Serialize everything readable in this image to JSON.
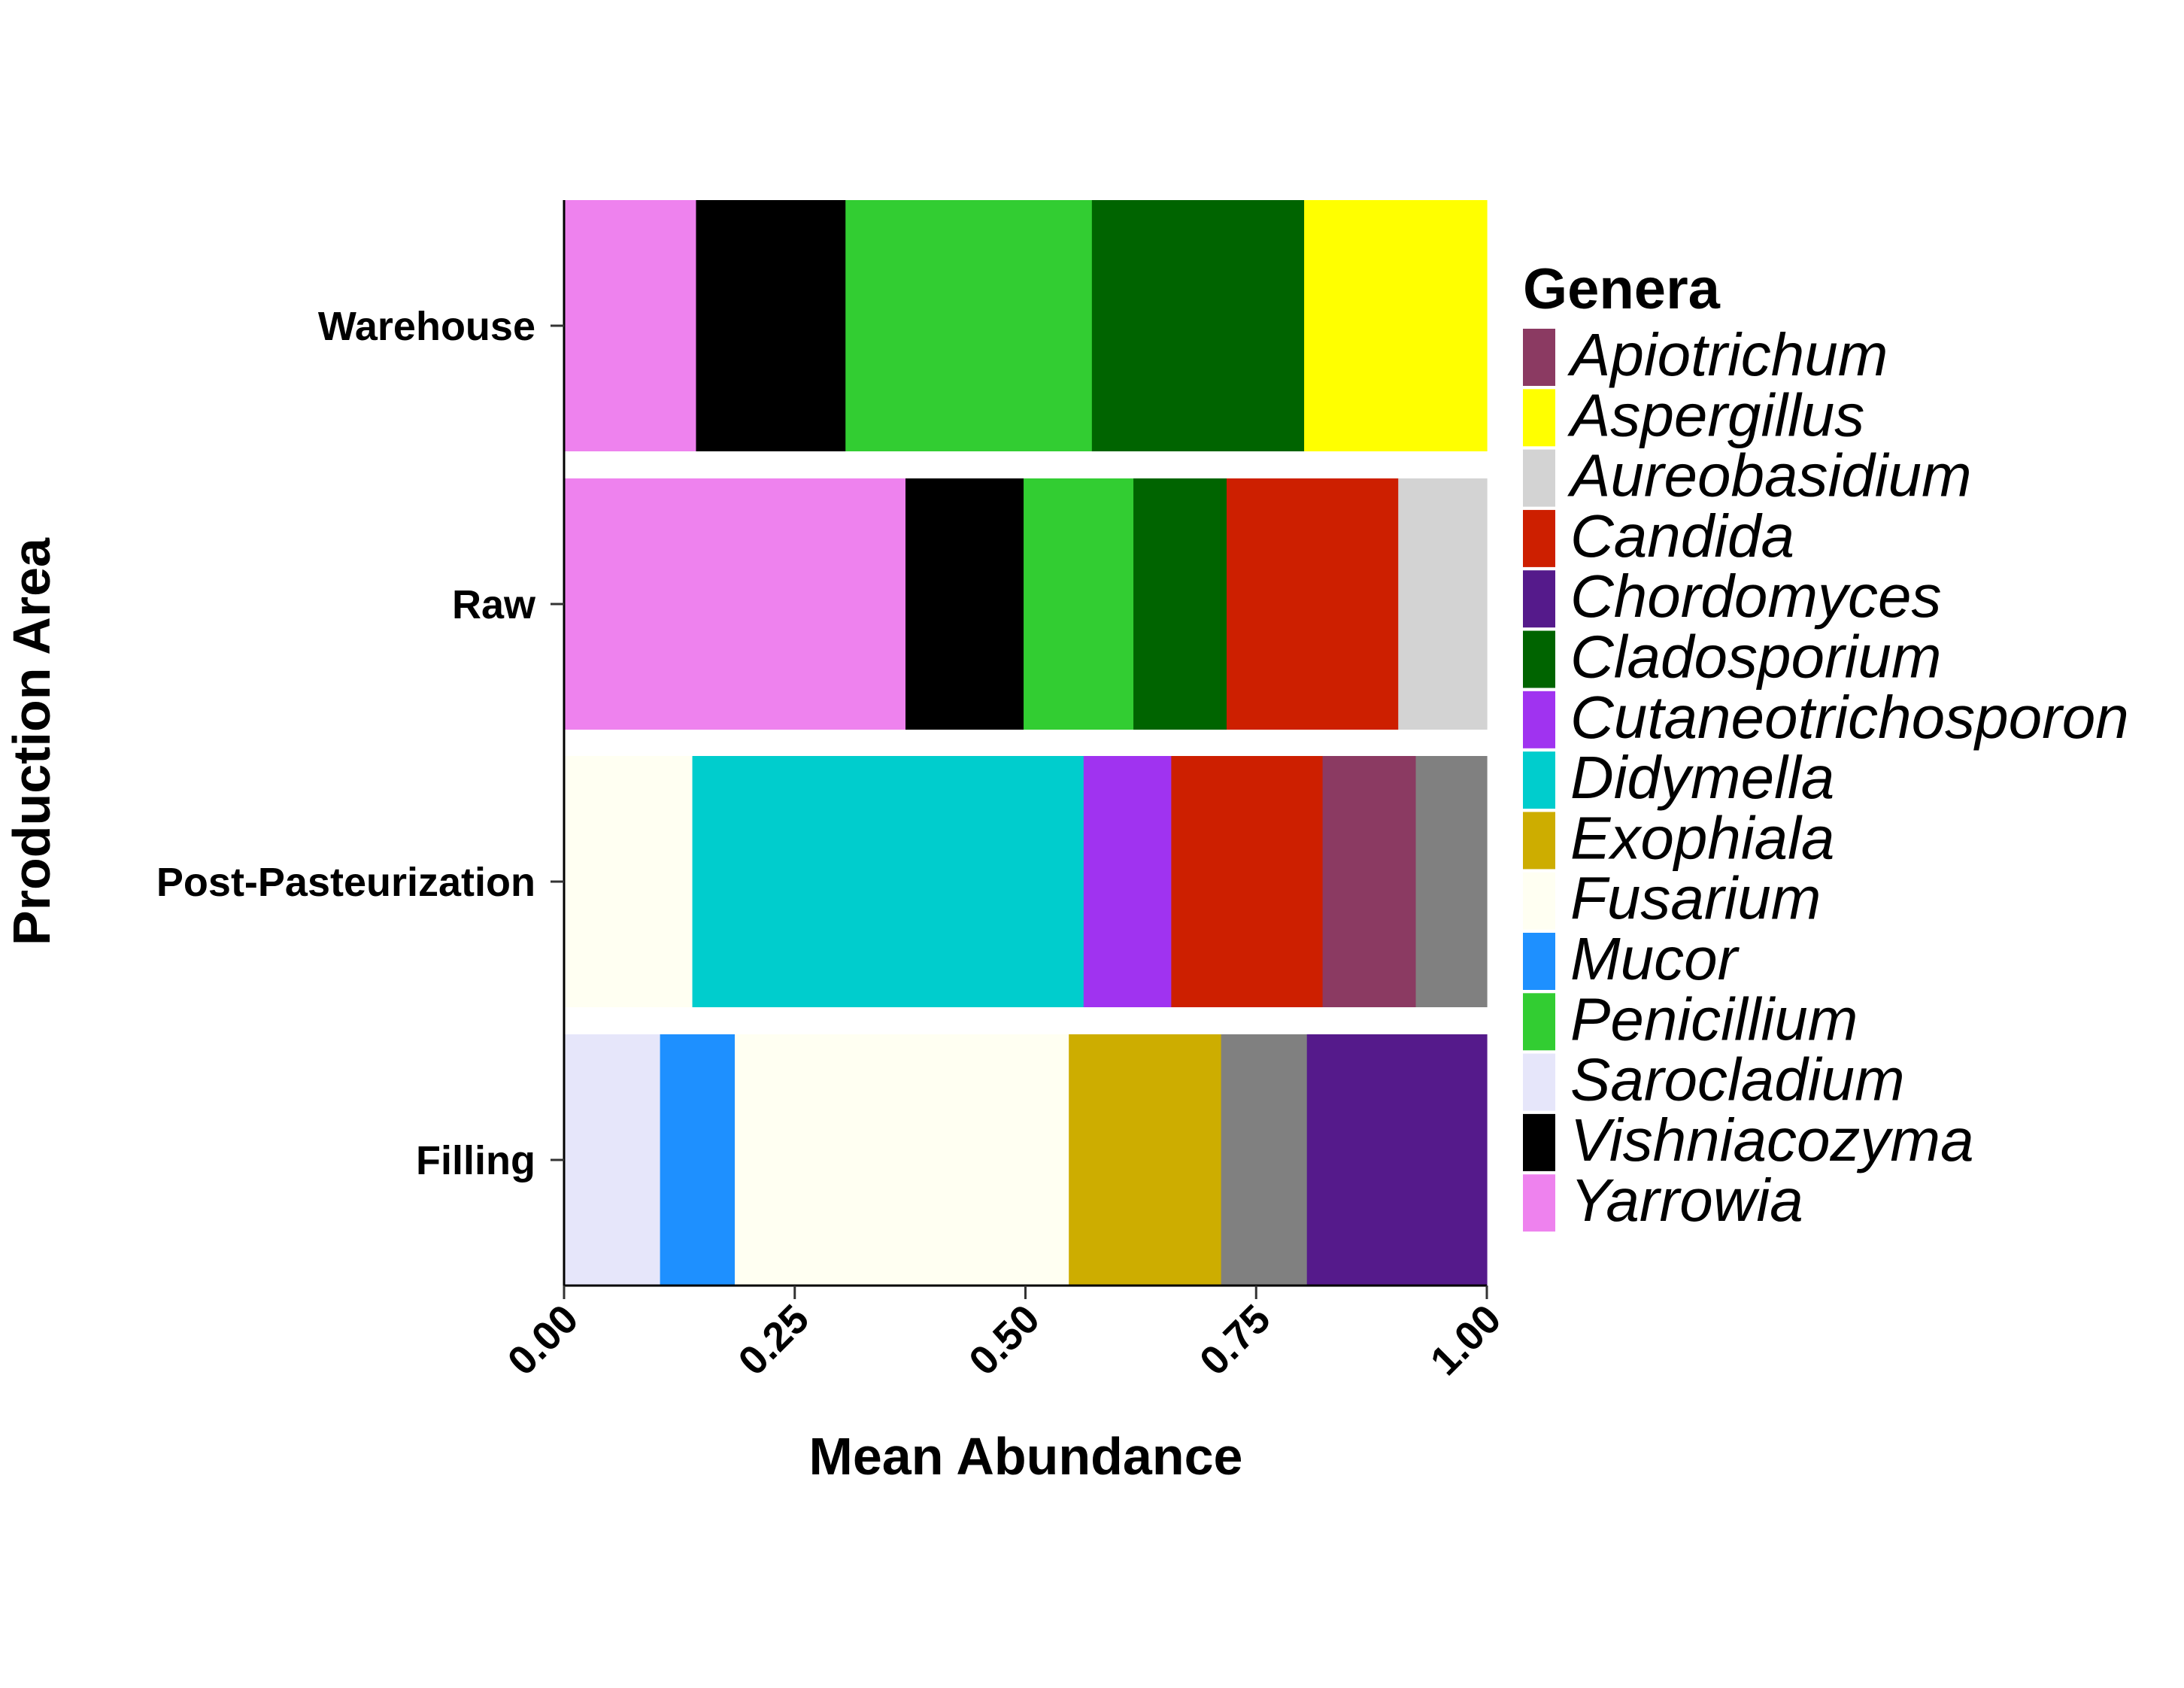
{
  "chart_data": {
    "type": "bar",
    "orientation": "horizontal",
    "stacked": true,
    "xlabel": "Mean Abundance",
    "ylabel": "Production Area",
    "xlim": [
      0,
      1
    ],
    "x_ticks": [
      "0.00",
      "0.25",
      "0.50",
      "0.75",
      "1.00"
    ],
    "categories": [
      "Warehouse",
      "Raw",
      "Post-Pasteurization",
      "Filling"
    ],
    "legend": {
      "title": "Genera",
      "placement": "right",
      "entries": [
        {
          "name": "Apiotrichum",
          "color": "#8B3A62"
        },
        {
          "name": "Aspergillus",
          "color": "#FFFF00"
        },
        {
          "name": "Aureobasidium",
          "color": "#D3D3D3"
        },
        {
          "name": "Candida",
          "color": "#CD1F00"
        },
        {
          "name": "Chordomyces",
          "color": "#551A8B"
        },
        {
          "name": "Cladosporium",
          "color": "#006400"
        },
        {
          "name": "Cutaneotrichosporon",
          "color": "#A033F0"
        },
        {
          "name": "Didymella",
          "color": "#00CDCD"
        },
        {
          "name": "Exophiala",
          "color": "#CDAD00"
        },
        {
          "name": "Fusarium",
          "color": "#FFFFF2"
        },
        {
          "name": "Mucor",
          "color": "#1E90FF"
        },
        {
          "name": "Penicillium",
          "color": "#32CD32"
        },
        {
          "name": "Sarocladium",
          "color": "#E6E6FA"
        },
        {
          "name": "Vishniacozyma",
          "color": "#000000"
        },
        {
          "name": "Yarrowia",
          "color": "#EE82EE"
        }
      ]
    },
    "other_color": "#808080",
    "bars": [
      {
        "category": "Warehouse",
        "segments": [
          {
            "genus": "Yarrowia",
            "value": 0.143
          },
          {
            "genus": "Vishniacozyma",
            "value": 0.162
          },
          {
            "genus": "Penicillium",
            "value": 0.267
          },
          {
            "genus": "Cladosporium",
            "value": 0.23
          },
          {
            "genus": "Aspergillus",
            "value": 0.198
          }
        ]
      },
      {
        "category": "Raw",
        "segments": [
          {
            "genus": "Yarrowia",
            "value": 0.37
          },
          {
            "genus": "Vishniacozyma",
            "value": 0.128
          },
          {
            "genus": "Penicillium",
            "value": 0.119
          },
          {
            "genus": "Cladosporium",
            "value": 0.101
          },
          {
            "genus": "Candida",
            "value": 0.186
          },
          {
            "genus": "Aureobasidium",
            "value": 0.096
          }
        ]
      },
      {
        "category": "Post-Pasteurization",
        "segments": [
          {
            "genus": "Fusarium",
            "value": 0.139
          },
          {
            "genus": "Didymella",
            "value": 0.424
          },
          {
            "genus": "Cutaneotrichosporon",
            "value": 0.095
          },
          {
            "genus": "Candida",
            "value": 0.164
          },
          {
            "genus": "Apiotrichum",
            "value": 0.101
          },
          {
            "genus": "other",
            "value": 0.077
          }
        ]
      },
      {
        "category": "Filling",
        "segments": [
          {
            "genus": "Sarocladium",
            "value": 0.104
          },
          {
            "genus": "Mucor",
            "value": 0.081
          },
          {
            "genus": "Fusarium",
            "value": 0.362
          },
          {
            "genus": "Exophiala",
            "value": 0.165
          },
          {
            "genus": "other",
            "value": 0.093
          },
          {
            "genus": "Chordomyces",
            "value": 0.195
          }
        ]
      }
    ]
  }
}
